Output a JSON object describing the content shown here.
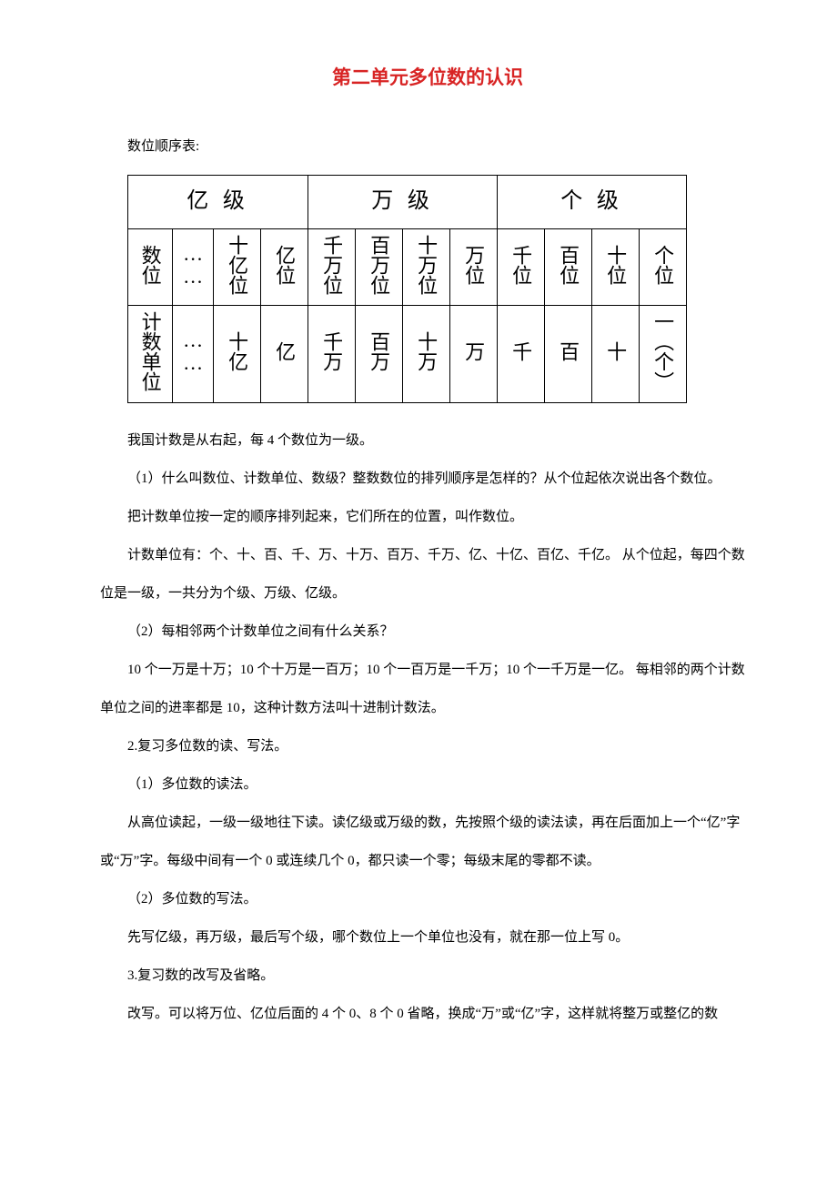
{
  "title": "第二单元多位数的认识",
  "intro": "数位顺序表:",
  "table": {
    "groups": [
      "亿 级",
      "万   级",
      "个    级"
    ],
    "row_digits_label": "数位",
    "row_units_label": "计数单位",
    "dots": "……",
    "digits": [
      "十亿位",
      "亿位",
      "千万位",
      "百万位",
      "十万位",
      "万位",
      "千位",
      "百位",
      "十位",
      "个位"
    ],
    "units": [
      "十亿",
      "亿",
      "千万",
      "百万",
      "十万",
      "万",
      "千",
      "百",
      "十",
      "一（个）"
    ]
  },
  "paras": [
    "我国计数是从右起，每 4 个数位为一级。",
    "（1）什么叫数位、计数单位、数级？整数数位的排列顺序是怎样的？从个位起依次说出各个数位。",
    "把计数单位按一定的顺序排列起来，它们所在的位置，叫作数位。",
    "计数单位有：个、十、百、千、万、十万、百万、千万、亿、十亿、百亿、千亿。  从个位起，每四个数位是一级，一共分为个级、万级、亿级。",
    "（2）每相邻两个计数单位之间有什么关系？",
    "10 个一万是十万；10 个十万是一百万；10 个一百万是一千万；10 个一千万是一亿。  每相邻的两个计数单位之间的进率都是 10，这种计数方法叫十进制计数法。",
    "2.复习多位数的读、写法。",
    "（1）多位数的读法。",
    "从高位读起，一级一级地往下读。读亿级或万级的数，先按照个级的读法读，再在后面加上一个“亿”字或“万”字。每级中间有一个 0 或连续几个 0，都只读一个零；每级末尾的零都不读。",
    "（2）多位数的写法。",
    "先写亿级，再万级，最后写个级，哪个数位上一个单位也没有，就在那一位上写 0。",
    "3.复习数的改写及省略。",
    "改写。可以将万位、亿位后面的 4 个 0、8 个 0 省略，换成“万”或“亿”字，这样就将整万或整亿的数"
  ]
}
